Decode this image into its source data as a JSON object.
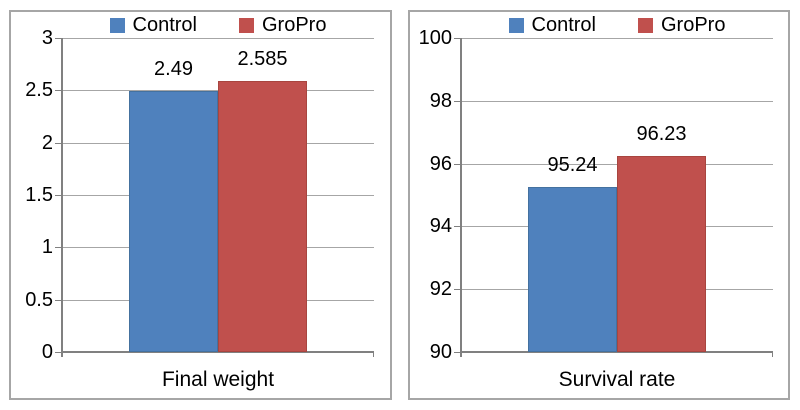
{
  "figure": {
    "background": "#ffffff",
    "panel_border_color": "#a6a6a6",
    "gridline_color": "#a6a6a6",
    "axis_color": "#808080",
    "text_color": "#000000"
  },
  "chart_data": [
    {
      "type": "bar",
      "title": "",
      "xlabel": "Final weight",
      "ylabel": "",
      "categories": [
        "Final weight"
      ],
      "series": [
        {
          "name": "Control",
          "values": [
            2.49
          ],
          "color": "#4F81BD",
          "border_color": "#44719F"
        },
        {
          "name": "GroPro",
          "values": [
            2.585
          ],
          "color": "#C0504D",
          "border_color": "#A8453F"
        }
      ],
      "data_labels": [
        "2.49",
        "2.585"
      ],
      "ylim": [
        0,
        3
      ],
      "ytick_step": 0.5,
      "yticks": [
        "3",
        "2.5",
        "2",
        "1.5",
        "1",
        "0.5",
        "0"
      ],
      "legend_position": "top",
      "grid": true
    },
    {
      "type": "bar",
      "title": "",
      "xlabel": "Survival rate",
      "ylabel": "",
      "categories": [
        "Survival rate"
      ],
      "series": [
        {
          "name": "Control",
          "values": [
            95.24
          ],
          "color": "#4F81BD",
          "border_color": "#44719F"
        },
        {
          "name": "GroPro",
          "values": [
            96.23
          ],
          "color": "#C0504D",
          "border_color": "#A8453F"
        }
      ],
      "data_labels": [
        "95.24",
        "96.23"
      ],
      "ylim": [
        90,
        100
      ],
      "ytick_step": 2,
      "yticks": [
        "100",
        "98",
        "96",
        "94",
        "92",
        "90"
      ],
      "legend_position": "top",
      "grid": true
    }
  ]
}
